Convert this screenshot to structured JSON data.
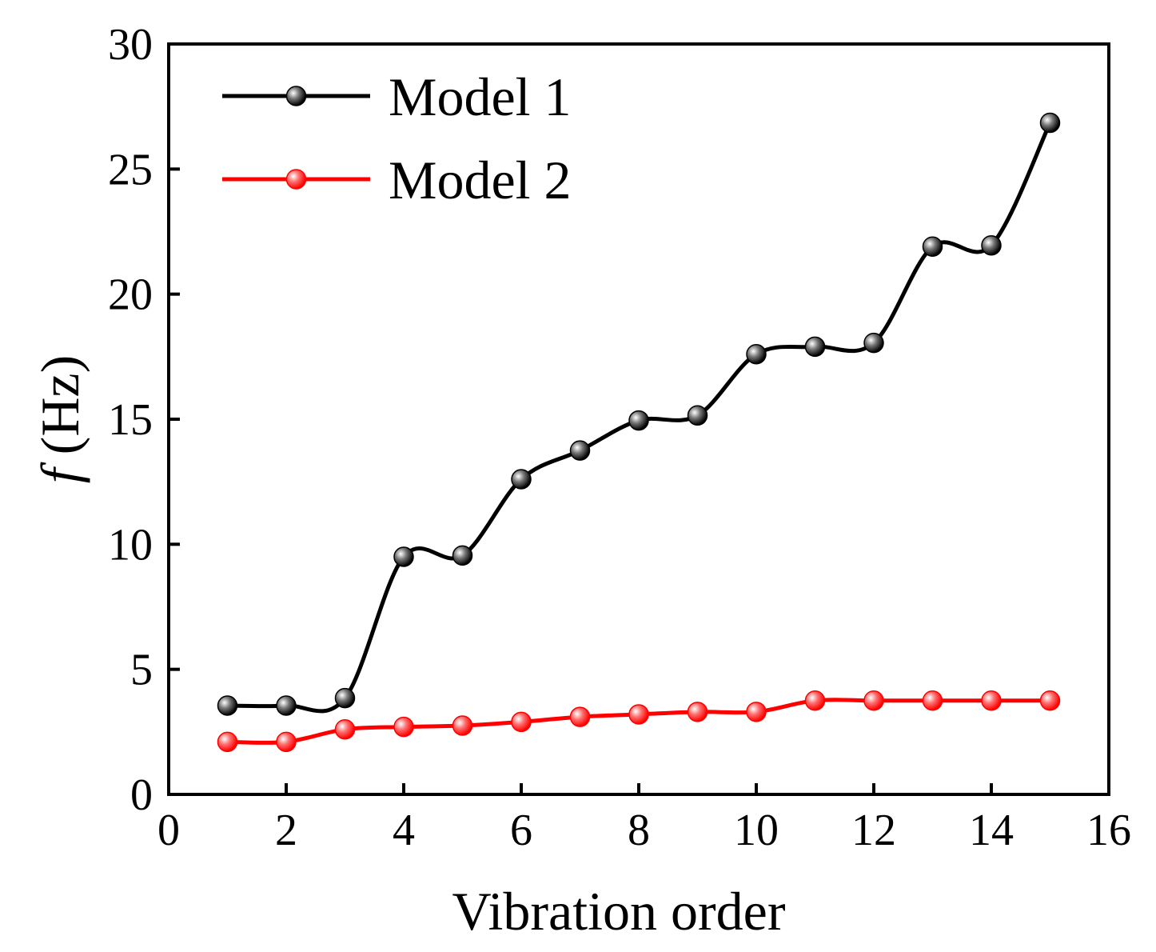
{
  "chart_data": {
    "type": "line",
    "title": "",
    "xlabel": "Vibration order",
    "ylabel_italic": "f",
    "ylabel_unit": " (Hz)",
    "xlim": [
      0,
      16
    ],
    "ylim": [
      0,
      30
    ],
    "xticks": [
      0,
      2,
      4,
      6,
      8,
      10,
      12,
      14,
      16
    ],
    "yticks": [
      0,
      5,
      10,
      15,
      20,
      25,
      30
    ],
    "grid": false,
    "legend_position": "top-left",
    "x": [
      1,
      2,
      3,
      4,
      5,
      6,
      7,
      8,
      9,
      10,
      11,
      12,
      13,
      14,
      15
    ],
    "series": [
      {
        "name": "Model 1",
        "color": "#000000",
        "marker_color": "#222222",
        "values": [
          3.55,
          3.55,
          3.85,
          9.5,
          9.55,
          12.6,
          13.75,
          14.95,
          15.15,
          17.6,
          17.9,
          18.05,
          21.9,
          21.95,
          26.85
        ]
      },
      {
        "name": "Model 2",
        "color": "#ff0000",
        "marker_color": "#ff0000",
        "values": [
          2.1,
          2.1,
          2.6,
          2.7,
          2.75,
          2.9,
          3.1,
          3.2,
          3.3,
          3.3,
          3.75,
          3.75,
          3.75,
          3.75,
          3.75
        ]
      }
    ]
  }
}
